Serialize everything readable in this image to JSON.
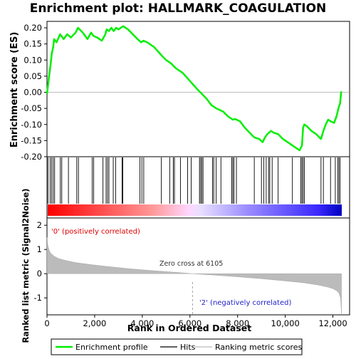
{
  "chart_data": {
    "type": "line",
    "title": "Enrichment plot: HALLMARK_COAGULATION",
    "es_panel": {
      "ylabel": "Enrichment score (ES)",
      "ylim": [
        -0.2,
        0.22
      ],
      "yticks": [
        "0.20",
        "0.15",
        "0.10",
        "0.05",
        "0.00",
        "-0.05",
        "-0.10",
        "-0.15",
        "-0.20"
      ],
      "ytick_values": [
        0.2,
        0.15,
        0.1,
        0.05,
        0.0,
        -0.05,
        -0.1,
        -0.15,
        -0.2
      ],
      "series_color": "#00ee00",
      "es_profile": {
        "x": [
          0,
          80,
          150,
          200,
          260,
          300,
          400,
          550,
          700,
          850,
          1000,
          1200,
          1300,
          1500,
          1700,
          1850,
          1950,
          2100,
          2300,
          2450,
          2500,
          2600,
          2700,
          2800,
          2900,
          3000,
          3100,
          3200,
          3400,
          3600,
          3800,
          3950,
          4050,
          4200,
          4500,
          4800,
          5000,
          5200,
          5400,
          5700,
          6000,
          6300,
          6500,
          6700,
          6900,
          7100,
          7400,
          7600,
          7800,
          7900,
          8100,
          8300,
          8500,
          8700,
          8900,
          9050,
          9150,
          9250,
          9400,
          9500,
          9700,
          9900,
          10100,
          10300,
          10400,
          10600,
          10700,
          10750,
          10800,
          10900,
          11100,
          11300,
          11500,
          11600,
          11700,
          11800,
          11900,
          12050,
          12150,
          12250,
          12300,
          12350
        ],
        "y": [
          -0.005,
          0.045,
          0.085,
          0.12,
          0.14,
          0.165,
          0.155,
          0.18,
          0.165,
          0.18,
          0.17,
          0.185,
          0.2,
          0.185,
          0.165,
          0.185,
          0.175,
          0.17,
          0.16,
          0.18,
          0.195,
          0.19,
          0.2,
          0.19,
          0.2,
          0.195,
          0.2,
          0.205,
          0.195,
          0.18,
          0.165,
          0.155,
          0.16,
          0.155,
          0.14,
          0.115,
          0.1,
          0.09,
          0.075,
          0.06,
          0.035,
          0.01,
          -0.005,
          -0.02,
          -0.04,
          -0.05,
          -0.06,
          -0.075,
          -0.085,
          -0.083,
          -0.09,
          -0.11,
          -0.125,
          -0.14,
          -0.145,
          -0.155,
          -0.14,
          -0.13,
          -0.12,
          -0.125,
          -0.13,
          -0.145,
          -0.155,
          -0.165,
          -0.17,
          -0.18,
          -0.165,
          -0.11,
          -0.1,
          -0.105,
          -0.12,
          -0.13,
          -0.145,
          -0.12,
          -0.1,
          -0.085,
          -0.09,
          -0.095,
          -0.075,
          -0.045,
          -0.035,
          0.003
        ]
      }
    },
    "hits": [
      40,
      130,
      190,
      260,
      320,
      560,
      620,
      900,
      1250,
      1320,
      1900,
      1960,
      2350,
      2480,
      2540,
      2600,
      2780,
      2880,
      3150,
      3180,
      3900,
      3980,
      4060,
      4800,
      5150,
      5300,
      5350,
      5600,
      5900,
      6050,
      6400,
      6450,
      6500,
      6550,
      6950,
      7000,
      7100,
      7300,
      7750,
      7800,
      7850,
      7950,
      8700,
      9000,
      9100,
      9200,
      9300,
      9350,
      9450,
      9700,
      10300,
      10650,
      10700,
      10750,
      10800,
      11500,
      11600,
      11900,
      12100,
      12200,
      12250,
      12300
    ],
    "ranked_panel": {
      "ylabel": "Ranked list metric (Signal2Noise)",
      "ylim": [
        -1.7,
        2.3
      ],
      "yticks": [
        "2",
        "1",
        "0",
        "-1"
      ],
      "ytick_values": [
        2,
        1,
        0,
        -1
      ],
      "metric_curve": {
        "x": [
          0,
          30,
          80,
          150,
          300,
          500,
          800,
          1200,
          1800,
          2500,
          3500,
          4500,
          5500,
          6105,
          7000,
          8000,
          9000,
          10000,
          10800,
          11400,
          11800,
          12000,
          12150,
          12250,
          12320,
          12360
        ],
        "y": [
          1.5,
          1.2,
          1.0,
          0.85,
          0.72,
          0.62,
          0.54,
          0.46,
          0.38,
          0.3,
          0.2,
          0.12,
          0.05,
          0.0,
          -0.06,
          -0.13,
          -0.21,
          -0.3,
          -0.38,
          -0.47,
          -0.56,
          -0.62,
          -0.7,
          -0.8,
          -1.0,
          -1.65
        ]
      },
      "annotations": {
        "positive": "'0' (positively correlated)",
        "zero_cross": "Zero cross at 6105",
        "negative": "'2' (negatively correlated)"
      },
      "zero_cross_x": 6105
    },
    "xlabel": "Rank in Ordered Dataset",
    "xlim": [
      0,
      12700
    ],
    "xticks": [
      "0",
      "2,000",
      "4,000",
      "6,000",
      "8,000",
      "10,000",
      "12,000"
    ],
    "xtick_values": [
      0,
      2000,
      4000,
      6000,
      8000,
      10000,
      12000
    ],
    "n_genes": 12360,
    "legend": {
      "placement": "bottom",
      "items": [
        {
          "label": "Enrichment profile",
          "color": "#00ee00"
        },
        {
          "label": "Hits",
          "color": "#000000"
        },
        {
          "label": "Ranking metric scores",
          "color": "#bbbbbb"
        }
      ]
    }
  }
}
